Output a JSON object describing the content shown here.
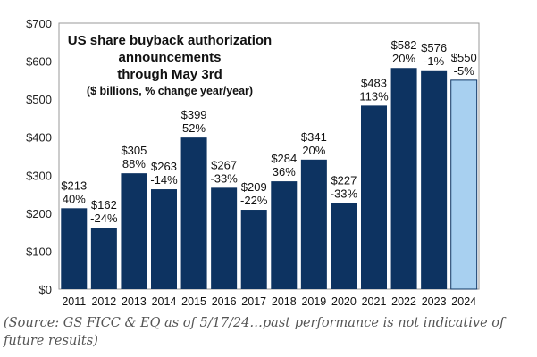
{
  "chart_data": {
    "type": "bar",
    "title": [
      "US share buyback authorization",
      "announcements",
      "through May 3rd"
    ],
    "subtitle": "($ billions, % change year/year)",
    "categories": [
      "2011",
      "2012",
      "2013",
      "2014",
      "2015",
      "2016",
      "2017",
      "2018",
      "2019",
      "2020",
      "2021",
      "2022",
      "2023",
      "2024"
    ],
    "values": [
      213,
      162,
      305,
      263,
      399,
      267,
      209,
      284,
      341,
      227,
      483,
      582,
      576,
      550
    ],
    "value_labels": [
      "$213",
      "$162",
      "$305",
      "$263",
      "$399",
      "$267",
      "$209",
      "$284",
      "$341",
      "$227",
      "$483",
      "$582",
      "$576",
      "$550"
    ],
    "pct_labels": [
      "40%",
      "-24%",
      "88%",
      "-14%",
      "52%",
      "-33%",
      "-22%",
      "36%",
      "20%",
      "-33%",
      "113%",
      "20%",
      "-1%",
      "-5%"
    ],
    "ylim": [
      0,
      700
    ],
    "yticks": [
      0,
      100,
      200,
      300,
      400,
      500,
      600,
      700
    ],
    "ytick_labels": [
      "$0",
      "$100",
      "$200",
      "$300",
      "$400",
      "$500",
      "$600",
      "$700"
    ],
    "xlabel": "",
    "ylabel": "",
    "grid": false,
    "colors": {
      "bar": "#0d3361",
      "highlight": "#a8d0f0"
    },
    "highlight_index": 13
  },
  "source": "(Source: GS FICC & EQ as of 5/17/24…past performance is not indicative of future results)"
}
